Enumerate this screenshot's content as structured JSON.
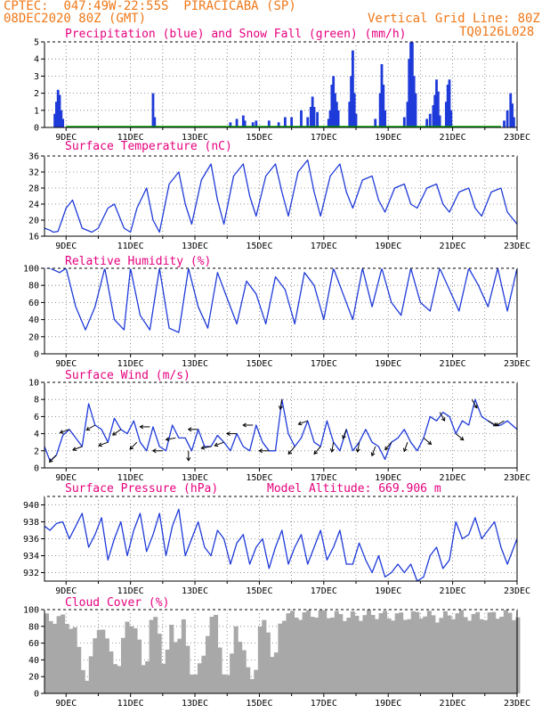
{
  "header": {
    "source": "CPTEC:",
    "location": "047:49W-22:55S",
    "station": "PIRACICABA (SP)",
    "run": "08DEC2020 80Z (GMT)",
    "grid_note": "Vertical Grid Line: 80Z",
    "product_code": "TQ0126L028"
  },
  "colors": {
    "header": "#f07818",
    "title": "#e6007e",
    "line": "#1e3ad8",
    "snow": "#00a000",
    "cloud": "#a8a8a8"
  },
  "chart_data": [
    {
      "id": "precip",
      "type": "bar",
      "title": "Precipitation (blue) and Snow Fall (green) (mm/h)",
      "x_ticks": [
        "9DEC",
        "11DEC",
        "13DEC",
        "15DEC",
        "17DEC",
        "19DEC",
        "21DEC",
        "23DEC"
      ],
      "ylim": [
        0,
        5
      ],
      "y_ticks": [
        0,
        1,
        2,
        3,
        4,
        5
      ],
      "day_range": [
        8.33,
        23.0
      ],
      "values": [
        [
          8.65,
          0.8
        ],
        [
          8.7,
          1.5
        ],
        [
          8.75,
          2.2
        ],
        [
          8.8,
          1.9
        ],
        [
          8.85,
          1.0
        ],
        [
          8.9,
          0.5
        ],
        [
          11.7,
          2.0
        ],
        [
          11.75,
          0.6
        ],
        [
          14.1,
          0.3
        ],
        [
          14.3,
          0.5
        ],
        [
          14.5,
          0.7
        ],
        [
          14.55,
          0.4
        ],
        [
          14.8,
          0.3
        ],
        [
          14.9,
          0.4
        ],
        [
          15.3,
          0.4
        ],
        [
          15.6,
          0.3
        ],
        [
          15.8,
          0.6
        ],
        [
          16.0,
          0.6
        ],
        [
          16.3,
          1.0
        ],
        [
          16.5,
          0.6
        ],
        [
          16.6,
          1.2
        ],
        [
          16.65,
          1.8
        ],
        [
          16.7,
          1.2
        ],
        [
          16.8,
          0.9
        ],
        [
          17.15,
          0.5
        ],
        [
          17.2,
          1.0
        ],
        [
          17.25,
          2.5
        ],
        [
          17.3,
          3.0
        ],
        [
          17.35,
          2.0
        ],
        [
          17.4,
          1.5
        ],
        [
          17.45,
          1.0
        ],
        [
          17.8,
          1.5
        ],
        [
          17.85,
          3.0
        ],
        [
          17.9,
          4.5
        ],
        [
          17.95,
          2.0
        ],
        [
          18.0,
          0.8
        ],
        [
          18.6,
          0.5
        ],
        [
          18.75,
          2.0
        ],
        [
          18.8,
          3.7
        ],
        [
          18.85,
          2.5
        ],
        [
          18.9,
          1.0
        ],
        [
          19.5,
          0.6
        ],
        [
          19.6,
          1.5
        ],
        [
          19.65,
          4.0
        ],
        [
          19.7,
          5.0
        ],
        [
          19.75,
          5.0
        ],
        [
          19.8,
          3.0
        ],
        [
          19.85,
          2.0
        ],
        [
          20.2,
          0.5
        ],
        [
          20.3,
          0.8
        ],
        [
          20.4,
          1.3
        ],
        [
          20.45,
          1.9
        ],
        [
          20.5,
          2.8
        ],
        [
          20.55,
          2.1
        ],
        [
          20.6,
          0.7
        ],
        [
          20.8,
          1.5
        ],
        [
          20.85,
          2.5
        ],
        [
          20.9,
          2.8
        ],
        [
          20.95,
          1.0
        ],
        [
          22.6,
          0.4
        ],
        [
          22.7,
          1.0
        ],
        [
          22.8,
          2.0
        ],
        [
          22.85,
          1.4
        ],
        [
          22.9,
          0.6
        ]
      ]
    },
    {
      "id": "temp",
      "type": "line",
      "title": "Surface Temperature (nC)",
      "x_ticks": [
        "9DEC",
        "11DEC",
        "13DEC",
        "15DEC",
        "17DEC",
        "19DEC",
        "21DEC",
        "23DEC"
      ],
      "ylim": [
        16,
        36
      ],
      "y_ticks": [
        16,
        20,
        24,
        28,
        32,
        36
      ],
      "x": [
        8.33,
        8.5,
        8.6,
        8.75,
        9.0,
        9.2,
        9.5,
        9.8,
        10.0,
        10.3,
        10.5,
        10.8,
        11.0,
        11.2,
        11.5,
        11.7,
        11.9,
        12.2,
        12.5,
        12.7,
        12.9,
        13.2,
        13.5,
        13.7,
        13.9,
        14.2,
        14.5,
        14.7,
        14.9,
        15.2,
        15.5,
        15.7,
        15.9,
        16.2,
        16.5,
        16.7,
        16.9,
        17.2,
        17.5,
        17.7,
        17.9,
        18.2,
        18.5,
        18.7,
        18.9,
        19.2,
        19.5,
        19.7,
        19.9,
        20.2,
        20.5,
        20.7,
        20.9,
        21.2,
        21.5,
        21.7,
        21.9,
        22.2,
        22.5,
        22.7,
        23.0
      ],
      "y": [
        18,
        17.5,
        17,
        17.2,
        23,
        25,
        18,
        17,
        18,
        23,
        24,
        18,
        17,
        23,
        28,
        20,
        17,
        29,
        32,
        24,
        19,
        30,
        34,
        25,
        19,
        31,
        34,
        26,
        21,
        31,
        34,
        27,
        21,
        32,
        35,
        27,
        21,
        31,
        34,
        27,
        23,
        30,
        31,
        25,
        22,
        28,
        29,
        24,
        23,
        28,
        29,
        24,
        22,
        27,
        28,
        23,
        21,
        27,
        28,
        22,
        19
      ]
    },
    {
      "id": "rh",
      "type": "line",
      "title": "Relative Humidity (%)",
      "x_ticks": [
        "9DEC",
        "11DEC",
        "13DEC",
        "15DEC",
        "17DEC",
        "19DEC",
        "21DEC",
        "23DEC"
      ],
      "ylim": [
        0,
        100
      ],
      "y_ticks": [
        0,
        20,
        40,
        60,
        80,
        100
      ],
      "x": [
        8.33,
        8.5,
        8.8,
        9.0,
        9.3,
        9.6,
        9.9,
        10.2,
        10.5,
        10.8,
        11.0,
        11.3,
        11.6,
        11.9,
        12.2,
        12.5,
        12.8,
        13.1,
        13.4,
        13.7,
        14.0,
        14.3,
        14.6,
        14.9,
        15.2,
        15.5,
        15.8,
        16.1,
        16.4,
        16.7,
        17.0,
        17.3,
        17.6,
        17.9,
        18.2,
        18.5,
        18.8,
        19.1,
        19.4,
        19.7,
        20.0,
        20.3,
        20.6,
        20.9,
        21.2,
        21.5,
        21.8,
        22.1,
        22.4,
        22.7,
        23.0
      ],
      "y": [
        100,
        100,
        95,
        100,
        55,
        28,
        55,
        100,
        40,
        28,
        100,
        45,
        28,
        100,
        30,
        25,
        100,
        55,
        30,
        95,
        65,
        35,
        85,
        70,
        35,
        90,
        75,
        35,
        95,
        80,
        40,
        100,
        70,
        40,
        100,
        55,
        100,
        60,
        45,
        100,
        60,
        50,
        100,
        75,
        50,
        100,
        80,
        55,
        100,
        50,
        100
      ]
    },
    {
      "id": "wind",
      "type": "line",
      "title": "Surface Wind (m/s)",
      "x_ticks": [
        "9DEC",
        "11DEC",
        "13DEC",
        "15DEC",
        "17DEC",
        "19DEC",
        "21DEC",
        "23DEC"
      ],
      "ylim": [
        0,
        10
      ],
      "y_ticks": [
        0,
        2,
        4,
        6,
        8,
        10
      ],
      "x": [
        8.33,
        8.5,
        8.7,
        8.9,
        9.1,
        9.3,
        9.5,
        9.7,
        9.9,
        10.1,
        10.3,
        10.5,
        10.7,
        10.9,
        11.1,
        11.3,
        11.5,
        11.7,
        11.9,
        12.1,
        12.3,
        12.5,
        12.7,
        12.9,
        13.1,
        13.3,
        13.5,
        13.7,
        13.9,
        14.1,
        14.3,
        14.5,
        14.7,
        14.9,
        15.1,
        15.3,
        15.5,
        15.7,
        15.9,
        16.1,
        16.3,
        16.5,
        16.7,
        16.9,
        17.1,
        17.3,
        17.5,
        17.7,
        17.9,
        18.1,
        18.3,
        18.5,
        18.7,
        18.9,
        19.1,
        19.3,
        19.5,
        19.7,
        19.9,
        20.1,
        20.3,
        20.5,
        20.7,
        20.9,
        21.1,
        21.3,
        21.5,
        21.7,
        21.9,
        22.1,
        22.3,
        22.5,
        22.7,
        23.0
      ],
      "y": [
        2.5,
        0.8,
        1.5,
        3.8,
        4.5,
        3.5,
        2.5,
        7.5,
        5.0,
        4.5,
        3.0,
        5.8,
        4.5,
        4.0,
        5.5,
        3.0,
        2.0,
        4.8,
        2.5,
        2.0,
        5.0,
        3.5,
        3.5,
        2.0,
        4.5,
        2.5,
        2.5,
        3.8,
        3.0,
        2.0,
        4.0,
        2.5,
        2.0,
        5.0,
        3.0,
        2.0,
        2.0,
        8.0,
        4.0,
        2.5,
        3.5,
        5.5,
        3.0,
        2.5,
        5.5,
        3.0,
        2.0,
        4.5,
        2.0,
        3.0,
        4.5,
        3.0,
        2.5,
        1.0,
        3.0,
        3.5,
        4.5,
        3.0,
        2.0,
        3.5,
        6.0,
        5.5,
        6.5,
        6.0,
        4.0,
        5.5,
        5.0,
        8.0,
        6.0,
        5.5,
        5.0,
        5.0,
        5.5,
        4.5
      ]
    },
    {
      "id": "pressure",
      "type": "line",
      "title": "Surface Pressure (hPa)",
      "annotation": "Model Altitude: 669.906 m",
      "x_ticks": [
        "9DEC",
        "11DEC",
        "13DEC",
        "15DEC",
        "17DEC",
        "19DEC",
        "21DEC",
        "23DEC"
      ],
      "ylim": [
        931,
        941
      ],
      "y_ticks": [
        932,
        934,
        936,
        938,
        940
      ],
      "x": [
        8.33,
        8.5,
        8.7,
        8.9,
        9.1,
        9.3,
        9.5,
        9.7,
        9.9,
        10.1,
        10.3,
        10.5,
        10.7,
        10.9,
        11.1,
        11.3,
        11.5,
        11.7,
        11.9,
        12.1,
        12.3,
        12.5,
        12.7,
        12.9,
        13.1,
        13.3,
        13.5,
        13.7,
        13.9,
        14.1,
        14.3,
        14.5,
        14.7,
        14.9,
        15.1,
        15.3,
        15.5,
        15.7,
        15.9,
        16.1,
        16.3,
        16.5,
        16.7,
        16.9,
        17.1,
        17.3,
        17.5,
        17.7,
        17.9,
        18.1,
        18.3,
        18.5,
        18.7,
        18.9,
        19.1,
        19.3,
        19.5,
        19.7,
        19.9,
        20.1,
        20.3,
        20.5,
        20.7,
        20.9,
        21.1,
        21.3,
        21.5,
        21.7,
        21.9,
        22.1,
        22.3,
        22.5,
        22.7,
        23.0
      ],
      "y": [
        937.5,
        937,
        937.8,
        938,
        936,
        937.5,
        939,
        935,
        936.5,
        938.5,
        933.5,
        936,
        938,
        934,
        937,
        939,
        934.5,
        936.5,
        939,
        934,
        937.5,
        939.5,
        934,
        936,
        938,
        935,
        934,
        937,
        936,
        933,
        935.5,
        936.5,
        933,
        935,
        936,
        932.5,
        935,
        937,
        933,
        935,
        936.5,
        933,
        935,
        937,
        933.5,
        935,
        937,
        933,
        933,
        935.5,
        933.5,
        932,
        934,
        931.5,
        932,
        933,
        932,
        933,
        931,
        931.5,
        934,
        935,
        932.5,
        933.5,
        938,
        936,
        936.5,
        938.5,
        936,
        937,
        938,
        935,
        933,
        936
      ]
    },
    {
      "id": "cloud",
      "type": "area",
      "title": "Cloud Cover (%)",
      "x_ticks": [
        "9DEC",
        "11DEC",
        "13DEC",
        "15DEC",
        "17DEC",
        "19DEC",
        "21DEC",
        "23DEC"
      ],
      "ylim": [
        0,
        100
      ],
      "y_ticks": [
        0,
        20,
        40,
        60,
        80,
        100
      ],
      "x": [
        8.33,
        8.6,
        8.9,
        9.2,
        9.4,
        9.6,
        9.8,
        10.0,
        10.2,
        10.4,
        10.6,
        10.8,
        11.0,
        11.2,
        11.4,
        11.6,
        11.8,
        12.0,
        12.2,
        12.4,
        12.6,
        12.8,
        13.0,
        13.2,
        13.4,
        13.6,
        13.8,
        14.0,
        14.2,
        14.4,
        14.6,
        14.8,
        15.0,
        15.2,
        15.4,
        15.6,
        15.8,
        16.0,
        16.5,
        17.0,
        17.5,
        18.0,
        18.5,
        19.0,
        19.5,
        20.0,
        20.5,
        21.0,
        21.5,
        22.0,
        22.5,
        23.0
      ],
      "y": [
        90,
        88,
        90,
        75,
        40,
        15,
        60,
        88,
        60,
        45,
        30,
        88,
        85,
        60,
        25,
        90,
        85,
        25,
        80,
        60,
        85,
        30,
        20,
        45,
        90,
        88,
        30,
        15,
        85,
        55,
        25,
        20,
        90,
        80,
        25,
        90,
        95,
        92,
        95,
        95,
        92,
        92,
        95,
        92,
        92,
        95,
        90,
        95,
        92,
        92,
        95,
        92
      ]
    }
  ]
}
